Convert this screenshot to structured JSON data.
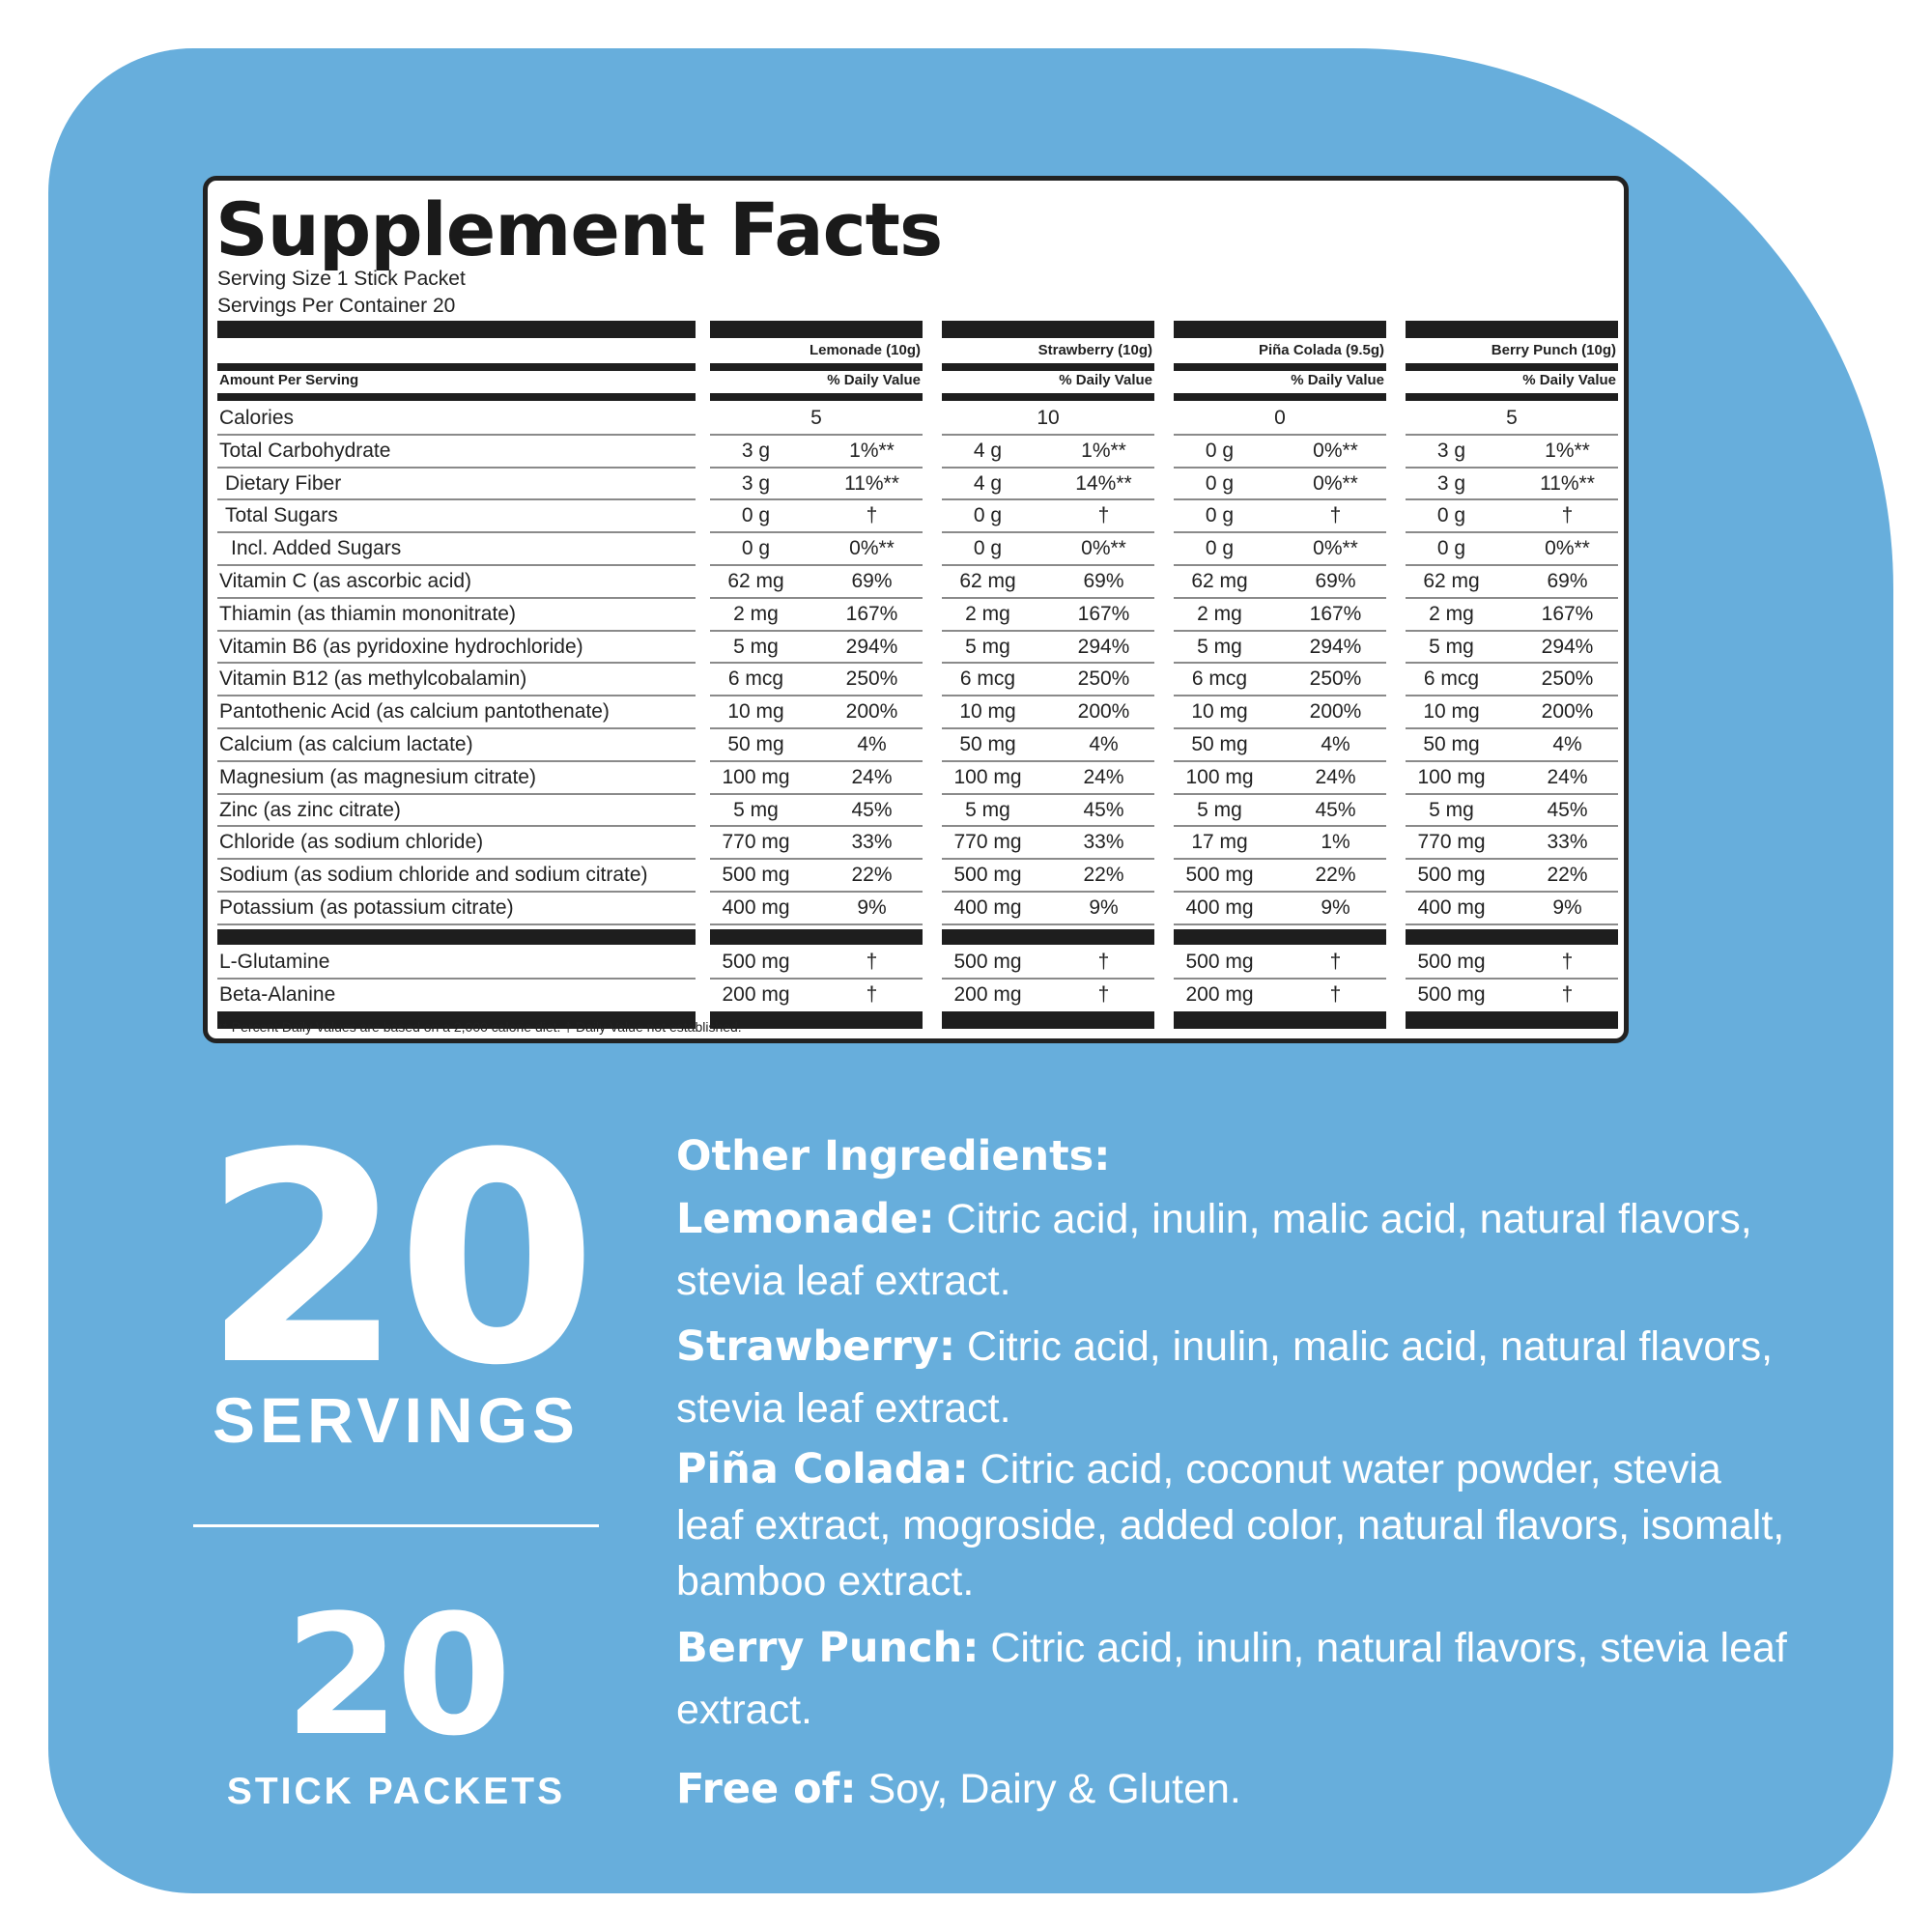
{
  "title": "Supplement Facts",
  "serving_size": "Serving Size 1 Stick Packet",
  "servings_per_container": "Servings Per Container 20",
  "amount_per_serving": "Amount Per Serving",
  "daily_value_label": "% Daily Value",
  "flavors": [
    "Lemonade (10g)",
    "Strawberry (10g)",
    "Piña Colada (9.5g)",
    "Berry Punch (10g)"
  ],
  "calories": {
    "label": "Calories",
    "values": [
      "5",
      "10",
      "0",
      "5"
    ]
  },
  "nutrients": [
    {
      "name": "Total Carbohydrate",
      "indent": 0,
      "cols": [
        [
          "3 g",
          "1%**"
        ],
        [
          "4 g",
          "1%**"
        ],
        [
          "0 g",
          "0%**"
        ],
        [
          "3 g",
          "1%**"
        ]
      ]
    },
    {
      "name": "Dietary Fiber",
      "indent": 1,
      "cols": [
        [
          "3 g",
          "11%**"
        ],
        [
          "4 g",
          "14%**"
        ],
        [
          "0 g",
          "0%**"
        ],
        [
          "3 g",
          "11%**"
        ]
      ]
    },
    {
      "name": "Total Sugars",
      "indent": 1,
      "cols": [
        [
          "0 g",
          "†"
        ],
        [
          "0 g",
          "†"
        ],
        [
          "0 g",
          "†"
        ],
        [
          "0 g",
          "†"
        ]
      ]
    },
    {
      "name": "Incl. Added Sugars",
      "indent": 2,
      "cols": [
        [
          "0 g",
          "0%**"
        ],
        [
          "0 g",
          "0%**"
        ],
        [
          "0 g",
          "0%**"
        ],
        [
          "0 g",
          "0%**"
        ]
      ]
    },
    {
      "name": "Vitamin C (as ascorbic acid)",
      "indent": 0,
      "cols": [
        [
          "62 mg",
          "69%"
        ],
        [
          "62 mg",
          "69%"
        ],
        [
          "62 mg",
          "69%"
        ],
        [
          "62 mg",
          "69%"
        ]
      ]
    },
    {
      "name": "Thiamin (as thiamin mononitrate)",
      "indent": 0,
      "cols": [
        [
          "2 mg",
          "167%"
        ],
        [
          "2 mg",
          "167%"
        ],
        [
          "2 mg",
          "167%"
        ],
        [
          "2 mg",
          "167%"
        ]
      ]
    },
    {
      "name": "Vitamin B6 (as pyridoxine hydrochloride)",
      "indent": 0,
      "cols": [
        [
          "5 mg",
          "294%"
        ],
        [
          "5 mg",
          "294%"
        ],
        [
          "5 mg",
          "294%"
        ],
        [
          "5 mg",
          "294%"
        ]
      ]
    },
    {
      "name": "Vitamin B12 (as methylcobalamin)",
      "indent": 0,
      "cols": [
        [
          "6 mcg",
          "250%"
        ],
        [
          "6 mcg",
          "250%"
        ],
        [
          "6 mcg",
          "250%"
        ],
        [
          "6 mcg",
          "250%"
        ]
      ]
    },
    {
      "name": "Pantothenic Acid (as calcium pantothenate)",
      "indent": 0,
      "cols": [
        [
          "10 mg",
          "200%"
        ],
        [
          "10 mg",
          "200%"
        ],
        [
          "10 mg",
          "200%"
        ],
        [
          "10 mg",
          "200%"
        ]
      ]
    },
    {
      "name": "Calcium (as calcium lactate)",
      "indent": 0,
      "cols": [
        [
          "50 mg",
          "4%"
        ],
        [
          "50 mg",
          "4%"
        ],
        [
          "50 mg",
          "4%"
        ],
        [
          "50 mg",
          "4%"
        ]
      ]
    },
    {
      "name": "Magnesium (as magnesium citrate)",
      "indent": 0,
      "cols": [
        [
          "100 mg",
          "24%"
        ],
        [
          "100 mg",
          "24%"
        ],
        [
          "100 mg",
          "24%"
        ],
        [
          "100 mg",
          "24%"
        ]
      ]
    },
    {
      "name": "Zinc (as zinc citrate)",
      "indent": 0,
      "cols": [
        [
          "5 mg",
          "45%"
        ],
        [
          "5 mg",
          "45%"
        ],
        [
          "5 mg",
          "45%"
        ],
        [
          "5 mg",
          "45%"
        ]
      ]
    },
    {
      "name": "Chloride (as sodium chloride)",
      "indent": 0,
      "cols": [
        [
          "770 mg",
          "33%"
        ],
        [
          "770 mg",
          "33%"
        ],
        [
          "17 mg",
          "1%"
        ],
        [
          "770 mg",
          "33%"
        ]
      ]
    },
    {
      "name": "Sodium (as sodium chloride and sodium citrate)",
      "indent": 0,
      "cols": [
        [
          "500 mg",
          "22%"
        ],
        [
          "500 mg",
          "22%"
        ],
        [
          "500 mg",
          "22%"
        ],
        [
          "500 mg",
          "22%"
        ]
      ]
    },
    {
      "name": "Potassium (as potassium citrate)",
      "indent": 0,
      "cols": [
        [
          "400 mg",
          "9%"
        ],
        [
          "400 mg",
          "9%"
        ],
        [
          "400 mg",
          "9%"
        ],
        [
          "400 mg",
          "9%"
        ]
      ]
    }
  ],
  "other_nutrients": [
    {
      "name": "L-Glutamine",
      "cols": [
        [
          "500 mg",
          "†"
        ],
        [
          "500 mg",
          "†"
        ],
        [
          "500 mg",
          "†"
        ],
        [
          "500 mg",
          "†"
        ]
      ]
    },
    {
      "name": "Beta-Alanine",
      "cols": [
        [
          "200 mg",
          "†"
        ],
        [
          "200 mg",
          "†"
        ],
        [
          "200 mg",
          "†"
        ],
        [
          "500 mg",
          "†"
        ]
      ]
    }
  ],
  "footnote": "** Percent Daily Values are based on a 2,000 calorie diet. † Daily Value not established.",
  "servings_count": "20",
  "servings_label": "SERVINGS",
  "packets_count": "20",
  "packets_label": "STICK PACKETS",
  "other_ingredients": {
    "heading": "Other Ingredients:",
    "items": [
      {
        "flavor": "Lemonade:",
        "text": " Citric acid, inulin, malic acid, natural flavors, stevia leaf extract."
      },
      {
        "flavor": "Strawberry:",
        "text": " Citric acid, inulin, malic acid, natural flavors, stevia leaf extract."
      },
      {
        "flavor": "Piña Colada:",
        "text": " Citric acid, coconut water powder, stevia leaf extract, mogroside, added color, natural flavors, isomalt, bamboo extract."
      },
      {
        "flavor": "Berry Punch:",
        "text": " Citric acid, inulin, natural flavors, stevia leaf extract."
      }
    ],
    "free_of_label": "Free of:",
    "free_of_text": " Soy, Dairy & Gluten."
  },
  "colors": {
    "background": "#67aedc",
    "panel": "#ffffff",
    "ink": "#1e1e1e",
    "text_light": "#ffffff"
  }
}
